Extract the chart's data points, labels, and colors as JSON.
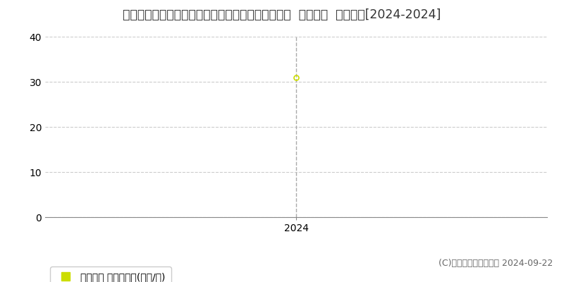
{
  "title": "愛知県知多郡阿久比町大字白沢字上カナクソ５番２  基準地価  地価推移[2024-2024]",
  "years": [
    2024
  ],
  "values": [
    31.0
  ],
  "ylim": [
    0,
    40
  ],
  "yticks": [
    0,
    10,
    20,
    30,
    40
  ],
  "xlim": [
    2022.5,
    2025.5
  ],
  "xticks": [
    2024
  ],
  "point_color": "#ccdd00",
  "point_marker": "o",
  "point_size": 5,
  "grid_color": "#cccccc",
  "vline_color": "#aaaaaa",
  "bg_color": "#ffffff",
  "plot_bg_color": "#ffffff",
  "legend_label": "基準地価 平均坪単価(万円/坪)",
  "legend_color": "#ccdd00",
  "copyright_text": "(C)土地価格ドットコム 2024-09-22",
  "title_fontsize": 12.5,
  "tick_fontsize": 10,
  "legend_fontsize": 10,
  "copyright_fontsize": 9
}
